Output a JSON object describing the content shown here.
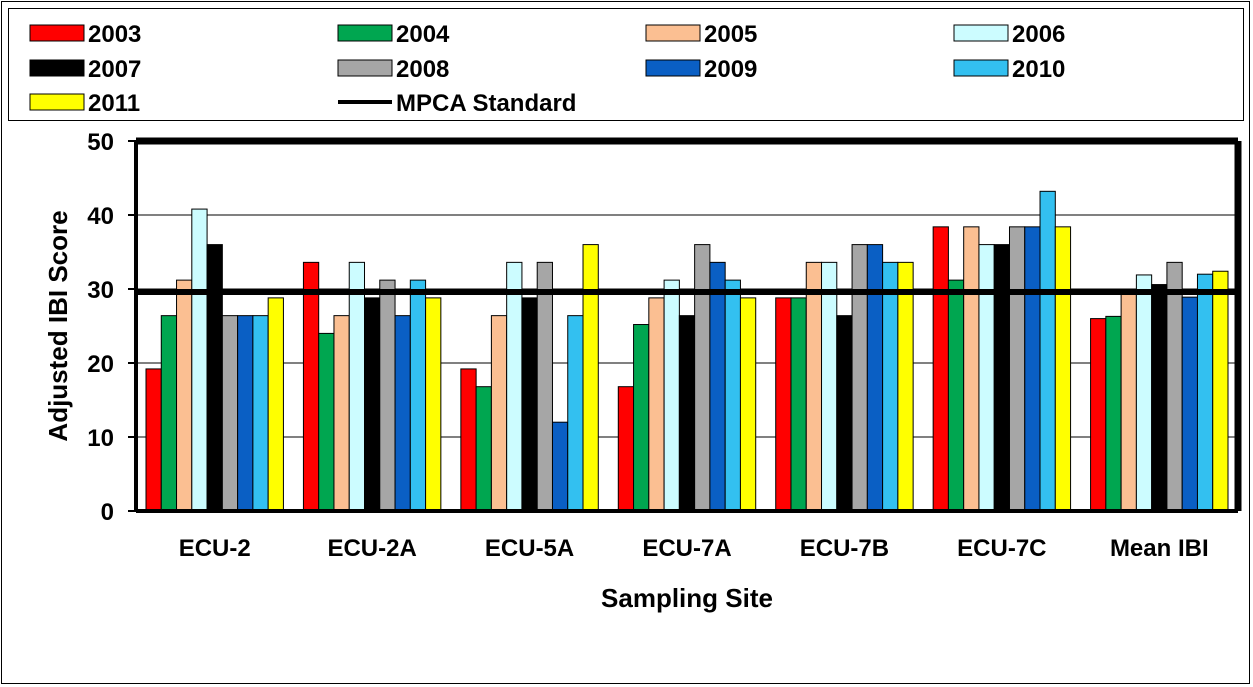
{
  "chart_data": {
    "type": "bar",
    "title": "",
    "xlabel": "Sampling Site",
    "ylabel": "Adjusted IBI Score",
    "ylim": [
      0,
      50
    ],
    "yticks": [
      "0",
      "10",
      "20",
      "30",
      "40",
      "50"
    ],
    "grid": true,
    "legend_position": "top",
    "categories": [
      "ECU-2",
      "ECU-2A",
      "ECU-5A",
      "ECU-7A",
      "ECU-7B",
      "ECU-7C",
      "Mean IBI"
    ],
    "series": [
      {
        "name": "2003",
        "color": "#ff0000",
        "values": [
          19.2,
          33.6,
          19.2,
          16.8,
          28.8,
          38.4,
          26.0
        ]
      },
      {
        "name": "2004",
        "color": "#00a650",
        "values": [
          26.4,
          24.0,
          16.8,
          25.2,
          28.8,
          31.2,
          26.3
        ]
      },
      {
        "name": "2005",
        "color": "#fbbf92",
        "values": [
          31.2,
          26.4,
          26.4,
          28.8,
          33.6,
          38.4,
          29.6
        ]
      },
      {
        "name": "2006",
        "color": "#ccfcff",
        "values": [
          40.8,
          33.6,
          33.6,
          31.2,
          33.6,
          36.0,
          31.9
        ]
      },
      {
        "name": "2007",
        "color": "#000000",
        "values": [
          36.0,
          28.8,
          28.8,
          26.4,
          26.4,
          36.0,
          30.6
        ]
      },
      {
        "name": "2008",
        "color": "#a6a6a6",
        "values": [
          26.4,
          31.2,
          33.6,
          36.0,
          36.0,
          38.4,
          33.6
        ]
      },
      {
        "name": "2009",
        "color": "#0a5fc4",
        "values": [
          26.4,
          26.4,
          12.0,
          33.6,
          36.0,
          38.4,
          28.9
        ]
      },
      {
        "name": "2010",
        "color": "#33c0f0",
        "values": [
          26.4,
          31.2,
          26.4,
          31.2,
          33.6,
          43.2,
          32.0
        ]
      },
      {
        "name": "2011",
        "color": "#ffff00",
        "values": [
          28.8,
          28.8,
          36.0,
          28.8,
          33.6,
          38.4,
          32.4
        ]
      }
    ],
    "reference_line": {
      "name": "MPCA Standard",
      "value": 29.6,
      "color": "#000000"
    }
  }
}
